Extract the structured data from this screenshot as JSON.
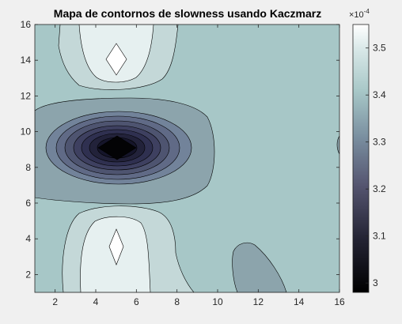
{
  "figure": {
    "title": "Mapa de contornos de slowness usando Kaczmarz",
    "background": "#f0f0f0"
  },
  "chart_data": {
    "type": "contour",
    "title": "Mapa de contornos de slowness usando Kaczmarz",
    "xlabel": "",
    "ylabel": "",
    "xlim": [
      1,
      16
    ],
    "ylim": [
      1,
      16
    ],
    "xticks": [
      "2",
      "4",
      "6",
      "8",
      "10",
      "12",
      "14",
      "16"
    ],
    "yticks": [
      "2",
      "4",
      "6",
      "8",
      "10",
      "12",
      "14",
      "16"
    ],
    "grid": false,
    "colormap": "bone",
    "colorbar": {
      "clim": [
        2.98,
        3.55
      ],
      "ticks": [
        "3",
        "3.1",
        "3.2",
        "3.3",
        "3.4",
        "3.5"
      ],
      "exponent_base": "×10",
      "exponent_power": "-4"
    },
    "background_value": 3.4,
    "features": [
      {
        "kind": "minimum",
        "x": 5,
        "y": 9,
        "value": 3.0
      },
      {
        "kind": "maximum",
        "x": 5,
        "y": 14,
        "value": 3.55
      },
      {
        "kind": "maximum",
        "x": 5,
        "y": 3.8,
        "value": 3.55
      },
      {
        "kind": "local-low",
        "x": 13,
        "y": 2,
        "value": 3.35
      }
    ],
    "colors": {
      "background_band": "#a7c7c7",
      "high_band_1": "#c4d8d8",
      "high_band_2": "#e6f0f0",
      "peak": "#ffffff",
      "low_band_1": "#8ca4ac"
    }
  }
}
